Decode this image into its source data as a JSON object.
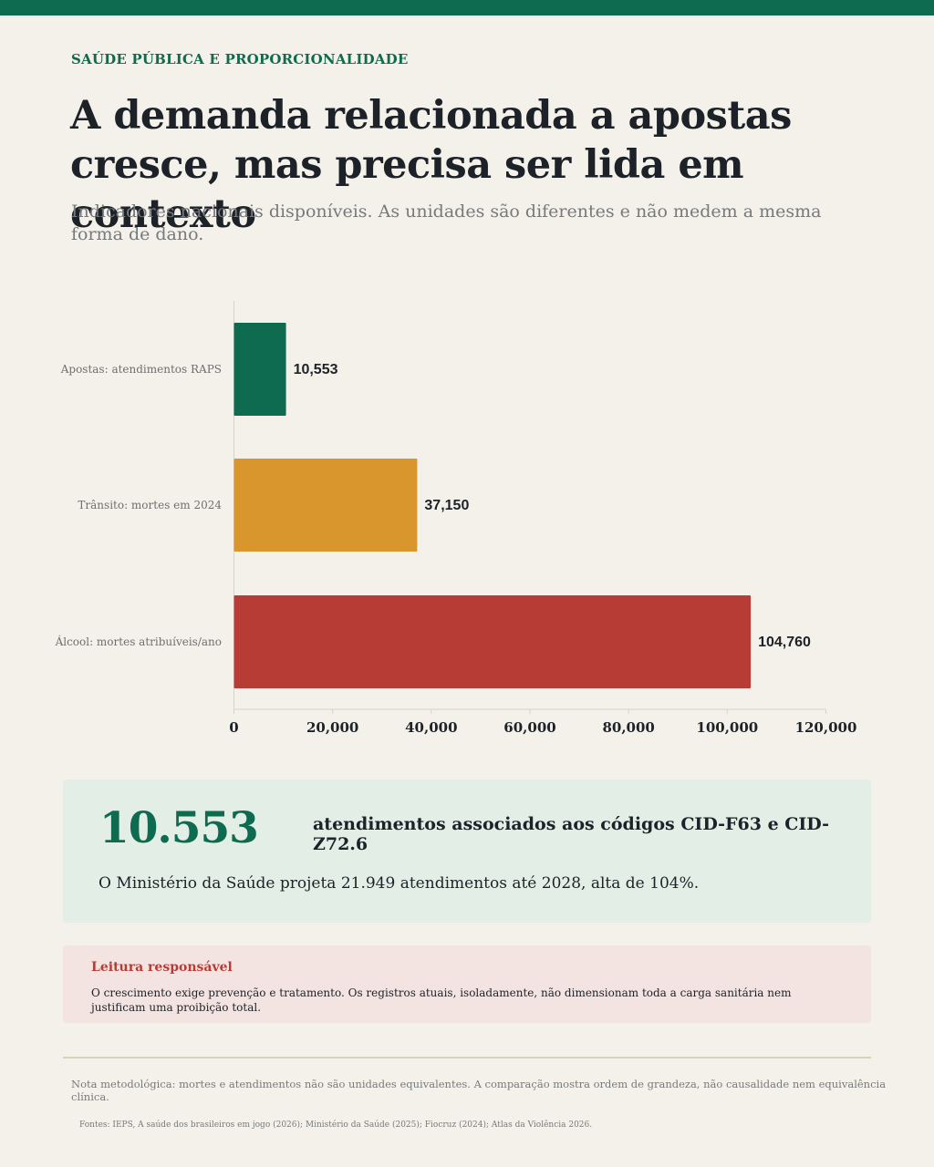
{
  "header": {
    "eyebrow": "SAÚDE PÚBLICA E PROPORCIONALIDADE",
    "title": "A demanda relacionada a apostas cresce, mas precisa ser lida em contexto",
    "subtitle": "Indicadores nacionais disponíveis. As unidades são diferentes e não medem a mesma forma de dano."
  },
  "chart_data": {
    "type": "bar",
    "orientation": "horizontal",
    "categories": [
      "Apostas: atendimentos RAPS",
      "Trânsito: mortes em 2024",
      "Álcool: mortes atribuíveis/ano"
    ],
    "values": [
      10553,
      37150,
      104760
    ],
    "value_labels": [
      "10,553",
      "37,150",
      "104,760"
    ],
    "colors": [
      "#0f6b4f",
      "#d9962c",
      "#b83c36"
    ],
    "xlim": [
      0,
      120000
    ],
    "xticks": [
      0,
      20000,
      40000,
      60000,
      80000,
      100000,
      120000
    ],
    "xtick_labels": [
      "0",
      "20,000",
      "40,000",
      "60,000",
      "80,000",
      "100,000",
      "120,000"
    ],
    "title": "",
    "xlabel": "",
    "ylabel": "",
    "grid": false
  },
  "highlight": {
    "number": "10.553",
    "description": "atendimentos associados aos códigos CID-F63 e CID-Z72.6",
    "projection": "O Ministério da Saúde projeta 21.949 atendimentos até 2028, alta de 104%."
  },
  "warning": {
    "title": "Leitura responsável",
    "text": "O crescimento exige prevenção e tratamento. Os registros atuais, isoladamente, não dimensionam toda a carga sanitária nem justificam uma proibição total."
  },
  "footer": {
    "note": "Nota metodológica: mortes e atendimentos não são unidades equivalentes. A comparação mostra ordem de grandeza, não causalidade nem equivalência clínica.",
    "sources": "Fontes: IEPS, A saúde dos brasileiros em jogo (2026); Ministério da Saúde (2025); Fiocruz (2024); Atlas da Violência 2026."
  }
}
